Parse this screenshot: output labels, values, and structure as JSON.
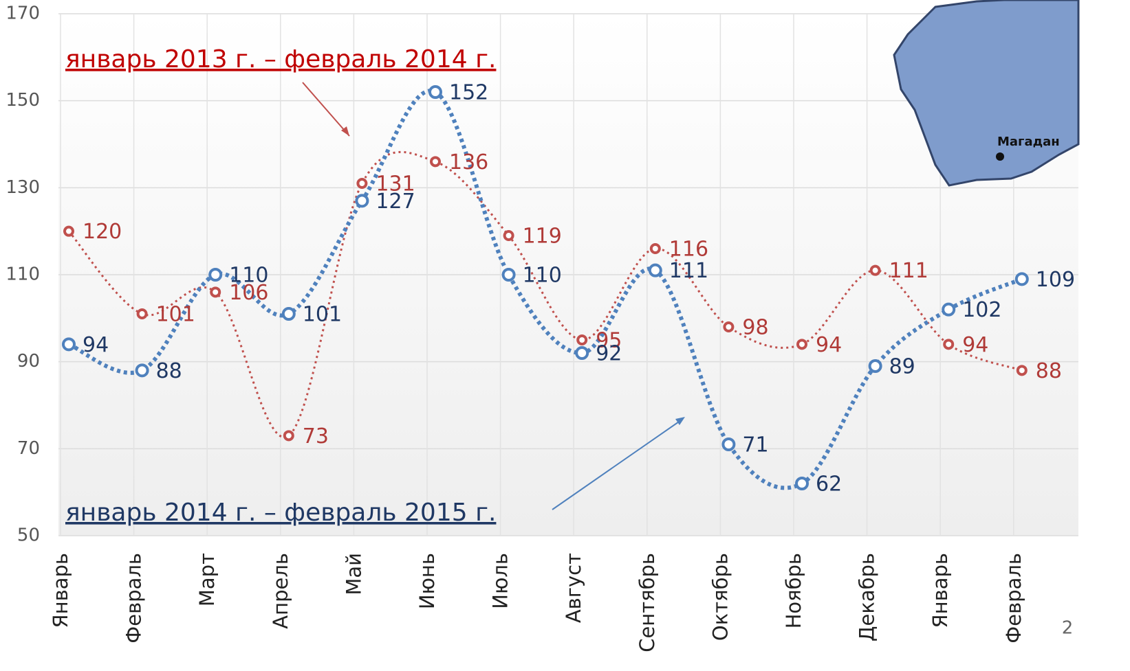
{
  "chart_data": {
    "type": "line",
    "categories": [
      "Январь",
      "Февраль",
      "Март",
      "Апрель",
      "Май",
      "Июнь",
      "Июль",
      "Август",
      "Сентябрь",
      "Октябрь",
      "Ноябрь",
      "Декабрь",
      "Январь",
      "Февраль"
    ],
    "series": [
      {
        "name": "январь 2013 г. – февраль 2014 г.",
        "color": "#c0504d",
        "values": [
          120,
          101,
          106,
          73,
          131,
          136,
          119,
          95,
          116,
          98,
          94,
          111,
          94,
          88
        ]
      },
      {
        "name": "январь 2014 г. – февраль 2015 г.",
        "color": "#4f81bd",
        "values": [
          94,
          88,
          110,
          101,
          127,
          152,
          110,
          92,
          111,
          71,
          62,
          89,
          102,
          109
        ]
      }
    ],
    "ylim": [
      50,
      170
    ],
    "yticks": [
      50,
      70,
      90,
      110,
      130,
      150,
      170
    ],
    "grid": true,
    "map_label": "Магадан",
    "page_number": "2"
  }
}
